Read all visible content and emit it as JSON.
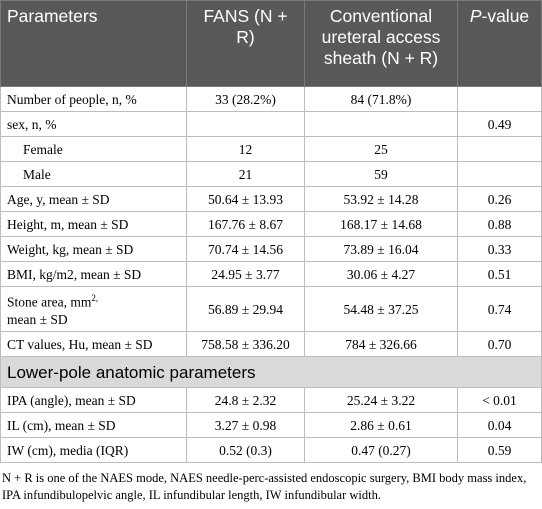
{
  "header": {
    "col1": "Parameters",
    "col2": "FANS (N + R)",
    "col3": "Conventional ureteral access sheath (N + R)",
    "col4_italic": "P",
    "col4_rest": "-value"
  },
  "rows": [
    {
      "label": "Number of people, n, %",
      "fans": "33 (28.2%)",
      "conv": "84 (71.8%)",
      "p": ""
    },
    {
      "label": "sex, n, %",
      "fans": "",
      "conv": "",
      "p": "0.49"
    },
    {
      "label": "Female",
      "fans": "12",
      "conv": "25",
      "p": ""
    },
    {
      "label": "Male",
      "fans": "21",
      "conv": "59",
      "p": ""
    },
    {
      "label": "Age, y, mean ± SD",
      "fans": "50.64 ± 13.93",
      "conv": "53.92 ± 14.28",
      "p": "0.26"
    },
    {
      "label": "Height, m, mean ± SD",
      "fans": "167.76 ± 8.67",
      "conv": "168.17 ± 14.68",
      "p": "0.88"
    },
    {
      "label": "Weight, kg, mean ± SD",
      "fans": "70.74 ± 14.56",
      "conv": "73.89 ± 16.04",
      "p": "0.33"
    },
    {
      "label": "BMI, kg/m2, mean ± SD",
      "fans": "24.95 ± 3.77",
      "conv": "30.06 ± 4.27",
      "p": "0.51"
    },
    {
      "label_a": "Stone area, mm",
      "label_sup": "2,",
      "label_b": "mean ± SD",
      "fans": "56.89 ± 29.94",
      "conv": "54.48 ± 37.25",
      "p": "0.74"
    },
    {
      "label": "CT values, Hu, mean ± SD",
      "fans": "758.58 ± 336.20",
      "conv": "784 ± 326.66",
      "p": "0.70"
    }
  ],
  "section_title": "Lower-pole anatomic parameters",
  "rows2": [
    {
      "label": "IPA (angle), mean ± SD",
      "fans": "24.8 ± 2.32",
      "conv": "25.24 ± 3.22",
      "p": "< 0.01"
    },
    {
      "label": "IL (cm), mean ± SD",
      "fans": "3.27 ± 0.98",
      "conv": "2.86 ± 0.61",
      "p": "0.04"
    },
    {
      "label": "IW (cm), media (IQR)",
      "fans": "0.52 (0.3)",
      "conv": "0.47 (0.27)",
      "p": "0.59"
    }
  ],
  "footnote": "N + R is one of the NAES mode, NAES needle-perc-assisted endoscopic surgery, BMI body mass index, IPA infundibulopelvic angle, IL infundibular length, IW infundibular width."
}
